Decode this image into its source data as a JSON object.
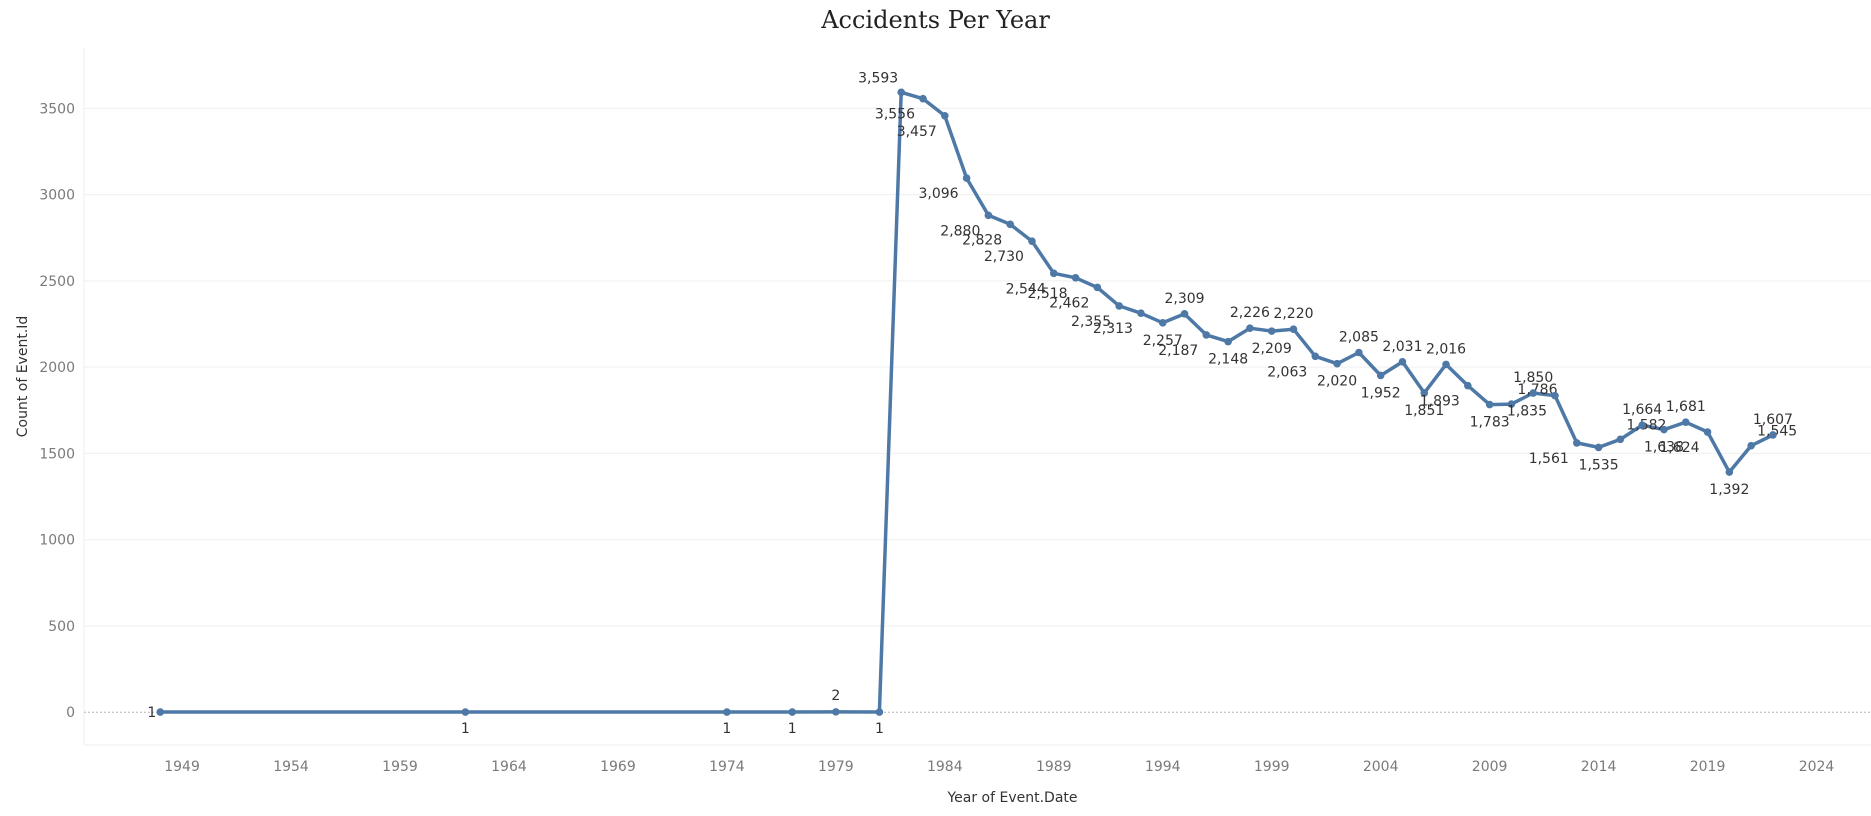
{
  "chart_data": {
    "type": "line",
    "title": "Accidents Per Year",
    "xlabel": "Year of Event.Date",
    "ylabel": "Count of Event.Id",
    "xlim": [
      1944.5,
      2026.5
    ],
    "ylim": [
      -190,
      3850
    ],
    "x_ticks": [
      1949,
      1954,
      1959,
      1964,
      1969,
      1974,
      1979,
      1984,
      1989,
      1994,
      1999,
      2004,
      2009,
      2014,
      2019,
      2024
    ],
    "y_ticks": [
      0,
      500,
      1000,
      1500,
      2000,
      2500,
      3000,
      3500
    ],
    "grid": true,
    "line_color": "#4e79a7",
    "series": [
      {
        "x": [
          1948,
          1962,
          1974,
          1977,
          1979,
          1981,
          1982,
          1983,
          1984,
          1985,
          1986,
          1987,
          1988,
          1989,
          1990,
          1991,
          1992,
          1993,
          1994,
          1995,
          1996,
          1997,
          1998,
          1999,
          2000,
          2001,
          2002,
          2003,
          2004,
          2005,
          2006,
          2007,
          2008,
          2009,
          2010,
          2011,
          2012,
          2013,
          2014,
          2015,
          2016,
          2017,
          2018,
          2019,
          2020,
          2021,
          2022
        ],
        "values": [
          1,
          1,
          1,
          1,
          2,
          1,
          3593,
          3556,
          3457,
          3096,
          2880,
          2828,
          2730,
          2544,
          2518,
          2462,
          2355,
          2313,
          2257,
          2309,
          2187,
          2148,
          2226,
          2209,
          2220,
          2063,
          2020,
          2085,
          1952,
          2031,
          1851,
          2016,
          1893,
          1783,
          1786,
          1850,
          1835,
          1561,
          1535,
          1582,
          1664,
          1638,
          1681,
          1624,
          1392,
          1545,
          1607
        ],
        "labels": [
          "1",
          "1",
          "1",
          "1",
          "2",
          "1",
          "3,593",
          "3,556",
          "3,457",
          "3,096",
          "2,880",
          "2,828",
          "2,730",
          "2,544",
          "2,518",
          "2,462",
          "2,355",
          "2,313",
          "2,257",
          "2,309",
          "2,187",
          "2,148",
          "2,226",
          "2,209",
          "2,220",
          "2,063",
          "2,020",
          "2,085",
          "1,952",
          "2,031",
          "1,851",
          "2,016",
          "1,893",
          "1,783",
          "1,786",
          "1,850",
          "1,835",
          "1,561",
          "1,535",
          "1,582",
          "1,664",
          "1,638",
          "1,681",
          "1,624",
          "1,392",
          "1,545",
          "1,607"
        ]
      }
    ]
  }
}
